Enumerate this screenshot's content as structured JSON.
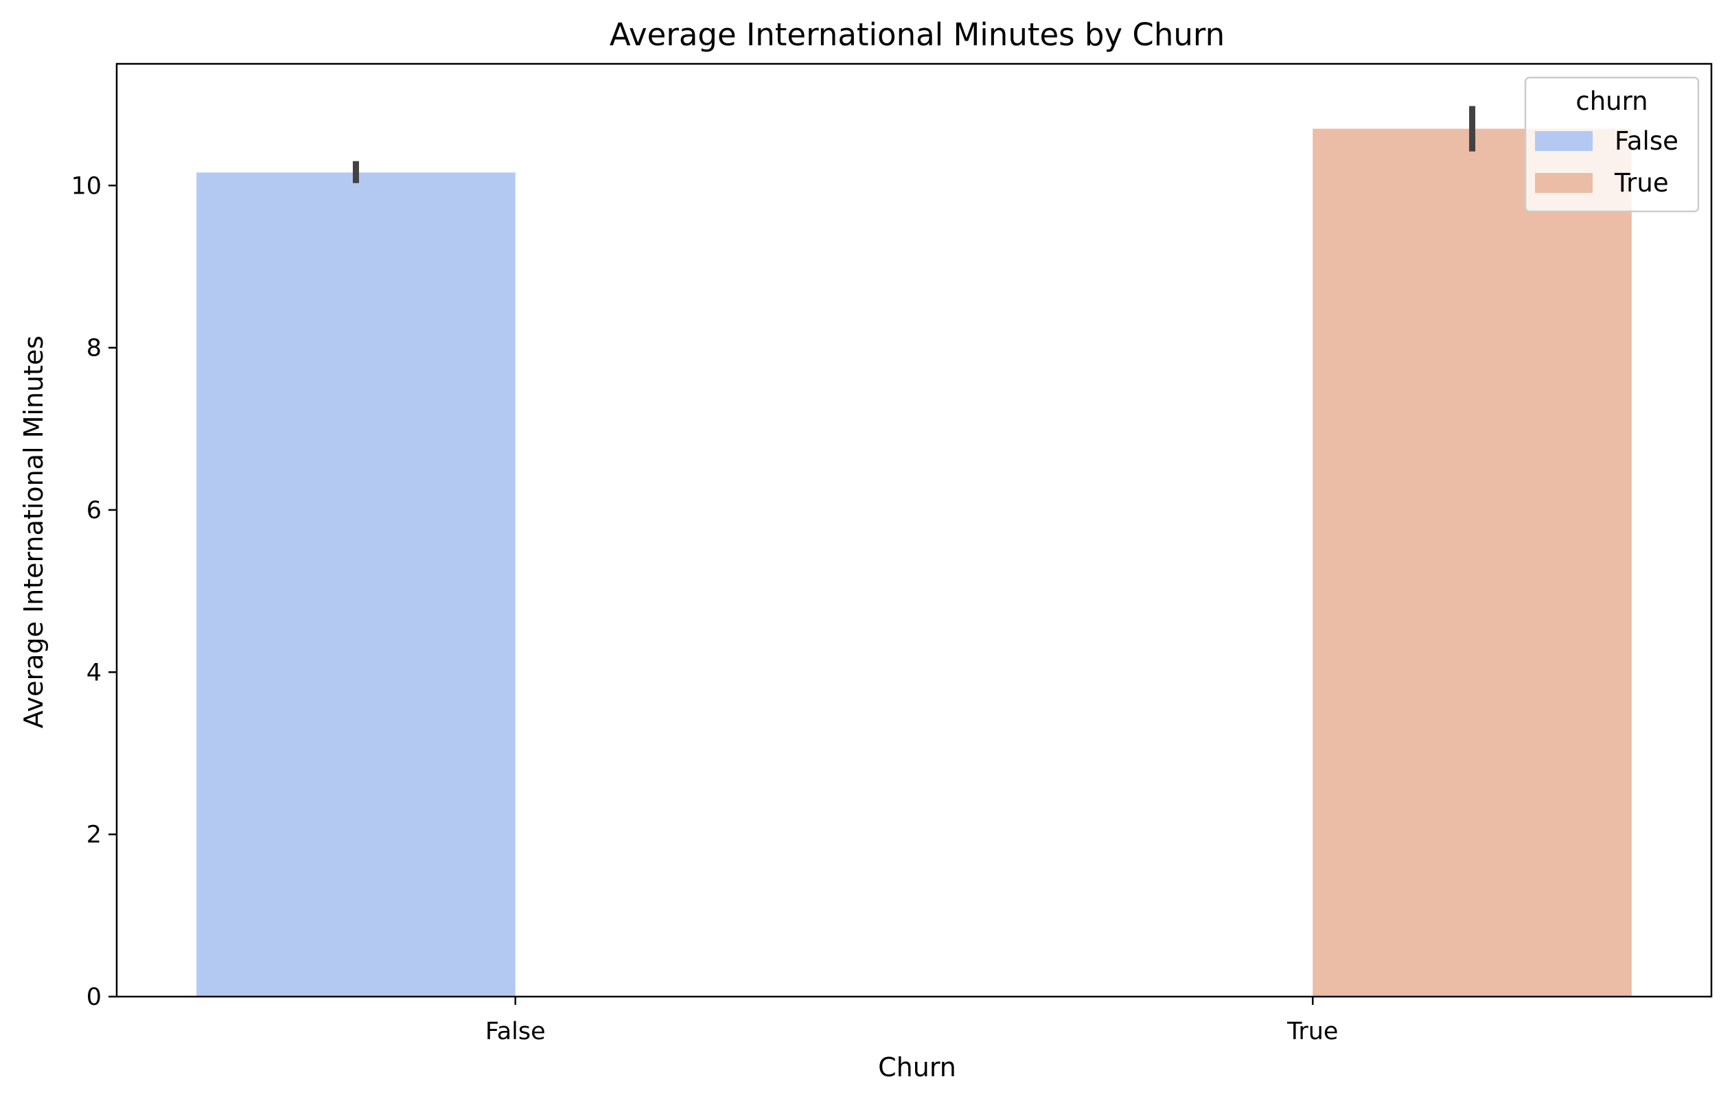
{
  "chart_data": {
    "type": "bar",
    "title": "Average International Minutes by Churn",
    "xlabel": "Churn",
    "ylabel": "Average International Minutes",
    "categories": [
      "False",
      "True"
    ],
    "series": [
      {
        "name": "False",
        "color": "#b4c9f2",
        "values": [
          10.16,
          null
        ],
        "error_low": [
          10.03,
          null
        ],
        "error_high": [
          10.3,
          null
        ]
      },
      {
        "name": "True",
        "color": "#ebbca6",
        "values": [
          null,
          10.7
        ],
        "error_low": [
          null,
          10.42
        ],
        "error_high": [
          null,
          10.98
        ]
      }
    ],
    "ylim": [
      0,
      11.5
    ],
    "yticks": [
      0,
      2,
      4,
      6,
      8,
      10
    ],
    "grid": false,
    "legend": {
      "title": "churn",
      "placement": "top-right"
    }
  }
}
